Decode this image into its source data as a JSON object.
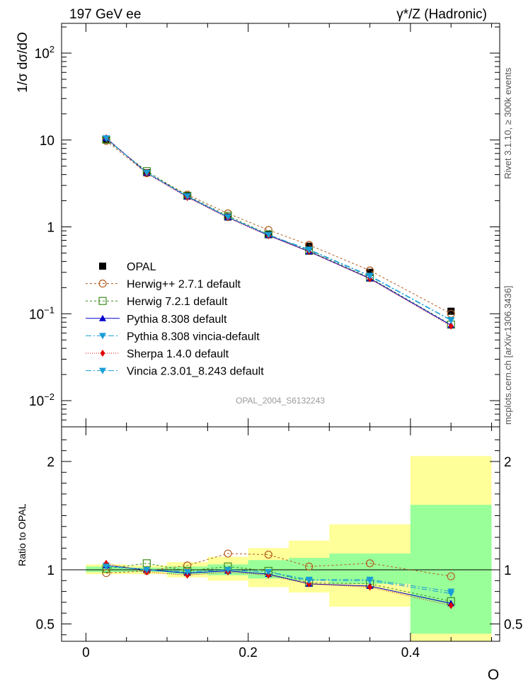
{
  "header": {
    "left_title": "197 GeV ee",
    "right_title": "γ*/Z (Hadronic)",
    "side_label_top": "Rivet 3.1.10, ≥ 300k events",
    "side_label_bottom": "mcplots.cern.ch [arXiv:1306.3436]",
    "watermark": "OPAL_2004_S6132243"
  },
  "chart_data": [
    {
      "type": "scatter",
      "title": "197 GeV ee",
      "ylabel": "1/σ dσ/dO",
      "xlabel": "O",
      "yscale": "log",
      "xlim": [
        -0.03,
        0.51
      ],
      "ylim": [
        0.005,
        220
      ],
      "y_tick_labels": [
        "10^-2",
        "10^-1",
        "1",
        "10",
        "10^2"
      ],
      "x": [
        0.025,
        0.075,
        0.125,
        0.175,
        0.225,
        0.275,
        0.35,
        0.45
      ],
      "bin_edges": [
        0.0,
        0.05,
        0.1,
        0.15,
        0.2,
        0.25,
        0.3,
        0.4,
        0.5
      ],
      "series": [
        {
          "name": "OPAL",
          "color": "#000000",
          "marker": "square-filled",
          "values": [
            10.2,
            4.2,
            2.3,
            1.3,
            0.83,
            0.6,
            0.3,
            0.107
          ]
        },
        {
          "name": "Herwig++ 2.7.1 default",
          "color": "#b35a1f",
          "marker": "circle-open",
          "dash": "3,3",
          "values": [
            9.8,
            4.15,
            2.35,
            1.43,
            0.92,
            0.62,
            0.315,
            0.1
          ]
        },
        {
          "name": "Herwig 7.2.1 default",
          "color": "#3c8c1e",
          "marker": "square-open",
          "dash": "3,3",
          "values": [
            10.1,
            4.38,
            2.28,
            1.34,
            0.82,
            0.53,
            0.26,
            0.075
          ]
        },
        {
          "name": "Pythia 8.308 default",
          "color": "#0000cc",
          "marker": "triangle-up",
          "dash": "",
          "values": [
            10.5,
            4.2,
            2.23,
            1.29,
            0.8,
            0.52,
            0.255,
            0.074
          ]
        },
        {
          "name": "Pythia 8.308 vincia-default",
          "color": "#1a9ed6",
          "marker": "triangle-down",
          "dash": "8,3,2,3",
          "values": [
            10.4,
            4.2,
            2.25,
            1.3,
            0.81,
            0.55,
            0.275,
            0.085
          ]
        },
        {
          "name": "Sherpa 1.4.0 default",
          "color": "#e00000",
          "marker": "diamond",
          "dash": "1,2",
          "values": [
            10.6,
            4.12,
            2.18,
            1.27,
            0.79,
            0.52,
            0.252,
            0.072
          ]
        },
        {
          "name": "Vincia 2.3.01_8.243 default",
          "color": "#1a9ed6",
          "marker": "triangle-down",
          "dash": "8,3,2,3",
          "values": [
            10.5,
            4.2,
            2.25,
            1.3,
            0.81,
            0.54,
            0.27,
            0.084
          ]
        }
      ]
    },
    {
      "type": "scatter",
      "ylabel": "Ratio to OPAL",
      "xlabel": "O",
      "xlim": [
        -0.03,
        0.51
      ],
      "ylim": [
        0.34,
        2.32
      ],
      "x_tick_labels": [
        "0",
        "0.2",
        "0.4"
      ],
      "y_tick_labels": [
        "0.5",
        "1",
        "2"
      ],
      "x": [
        0.025,
        0.075,
        0.125,
        0.175,
        0.225,
        0.275,
        0.35,
        0.45
      ],
      "bin_edges": [
        0.0,
        0.05,
        0.1,
        0.15,
        0.2,
        0.25,
        0.3,
        0.4,
        0.5
      ],
      "uncertainty_bands": {
        "stat_green": [
          [
            0.98,
            1.03
          ],
          [
            0.98,
            1.02
          ],
          [
            0.96,
            1.03
          ],
          [
            0.95,
            1.05
          ],
          [
            0.92,
            1.09
          ],
          [
            0.9,
            1.11
          ],
          [
            0.87,
            1.15
          ],
          [
            0.41,
            1.6
          ]
        ],
        "total_yellow": [
          [
            0.96,
            1.05
          ],
          [
            0.96,
            1.04
          ],
          [
            0.93,
            1.07
          ],
          [
            0.9,
            1.12
          ],
          [
            0.84,
            1.2
          ],
          [
            0.79,
            1.27
          ],
          [
            0.66,
            1.42
          ],
          [
            0.34,
            2.05
          ]
        ]
      },
      "series": [
        {
          "name": "Herwig++ 2.7.1 default",
          "values": [
            0.97,
            0.99,
            1.04,
            1.15,
            1.14,
            1.03,
            1.06,
            0.94
          ]
        },
        {
          "name": "Herwig 7.2.1 default",
          "values": [
            1.01,
            1.06,
            0.99,
            1.03,
            0.99,
            0.88,
            0.87,
            0.71
          ]
        },
        {
          "name": "Pythia 8.308 default",
          "values": [
            1.04,
            1.0,
            0.97,
            0.99,
            0.96,
            0.87,
            0.85,
            0.69
          ]
        },
        {
          "name": "Pythia 8.308 vincia-default",
          "values": [
            1.04,
            1.0,
            0.98,
            1.0,
            0.98,
            0.91,
            0.91,
            0.8
          ]
        },
        {
          "name": "Sherpa 1.4.0 default",
          "values": [
            1.06,
            0.98,
            0.95,
            0.98,
            0.95,
            0.87,
            0.84,
            0.67
          ]
        },
        {
          "name": "Vincia 2.3.01_8.243 default",
          "values": [
            1.03,
            1.0,
            0.98,
            1.0,
            0.98,
            0.9,
            0.9,
            0.78
          ]
        }
      ]
    }
  ]
}
